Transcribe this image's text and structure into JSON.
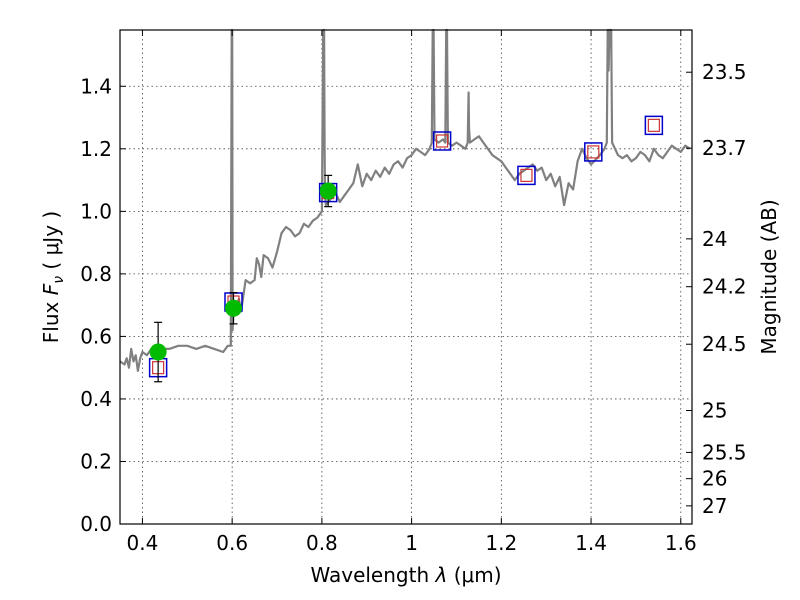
{
  "chart_data": {
    "type": "line",
    "xlabel": "Wavelength",
    "xlabel_symbol": "λ",
    "xlabel_unit": "(μm)",
    "ylabel": "Flux",
    "ylabel_symbol": "F",
    "ylabel_subscript": "ν",
    "ylabel_unit": "( μJy )",
    "y2label": "Magnitude (AB)",
    "xlim": [
      0.35,
      1.625
    ],
    "ylim": [
      0.0,
      1.58
    ],
    "grid": true,
    "x_ticks": [
      0.4,
      0.6,
      0.8,
      1.0,
      1.2,
      1.4,
      1.6
    ],
    "x_tick_labels": [
      "0.4",
      "0.6",
      "0.8",
      "1",
      "1.2",
      "1.4",
      "1.6"
    ],
    "y_ticks": [
      0.0,
      0.2,
      0.4,
      0.6,
      0.8,
      1.0,
      1.2,
      1.4
    ],
    "y_tick_labels": [
      "0.0",
      "0.2",
      "0.4",
      "0.6",
      "0.8",
      "1.0",
      "1.2",
      "1.4"
    ],
    "mag_ticks": [
      {
        "label": "23.5",
        "flux": 1.445
      },
      {
        "label": "23.7",
        "flux": 1.202
      },
      {
        "label": "24",
        "flux": 0.912
      },
      {
        "label": "24.2",
        "flux": 0.759
      },
      {
        "label": "24.5",
        "flux": 0.575
      },
      {
        "label": "25",
        "flux": 0.363
      },
      {
        "label": "25.5",
        "flux": 0.229
      },
      {
        "label": "26",
        "flux": 0.145
      },
      {
        "label": "27",
        "flux": 0.058
      }
    ],
    "colors": {
      "model": "#808080",
      "observed": "#00bb00",
      "model_box": "#0000cc",
      "model_box_inner": "#cc3333",
      "grid": "#444444"
    },
    "series": [
      {
        "kind": "model_spectrum",
        "x": [
          0.35,
          0.36,
          0.365,
          0.37,
          0.375,
          0.38,
          0.385,
          0.39,
          0.395,
          0.4,
          0.41,
          0.42,
          0.43,
          0.44,
          0.45,
          0.46,
          0.48,
          0.5,
          0.52,
          0.54,
          0.56,
          0.58,
          0.59,
          0.597,
          0.599,
          0.6,
          0.601,
          0.603,
          0.61,
          0.615,
          0.62,
          0.63,
          0.64,
          0.65,
          0.655,
          0.66,
          0.665,
          0.67,
          0.68,
          0.69,
          0.7,
          0.71,
          0.72,
          0.73,
          0.74,
          0.75,
          0.76,
          0.77,
          0.78,
          0.79,
          0.8,
          0.803,
          0.805,
          0.806,
          0.807,
          0.809,
          0.82,
          0.83,
          0.84,
          0.85,
          0.86,
          0.87,
          0.88,
          0.89,
          0.9,
          0.91,
          0.92,
          0.93,
          0.94,
          0.95,
          0.96,
          0.97,
          0.98,
          0.99,
          1.0,
          1.01,
          1.02,
          1.03,
          1.04,
          1.045,
          1.047,
          1.048,
          1.049,
          1.051,
          1.06,
          1.07,
          1.075,
          1.077,
          1.078,
          1.079,
          1.081,
          1.09,
          1.1,
          1.11,
          1.12,
          1.125,
          1.127,
          1.128,
          1.13,
          1.14,
          1.15,
          1.16,
          1.17,
          1.18,
          1.19,
          1.2,
          1.21,
          1.22,
          1.23,
          1.24,
          1.25,
          1.27,
          1.28,
          1.29,
          1.3,
          1.31,
          1.32,
          1.33,
          1.34,
          1.35,
          1.36,
          1.37,
          1.38,
          1.39,
          1.4,
          1.42,
          1.43,
          1.435,
          1.437,
          1.438,
          1.439,
          1.441,
          1.443,
          1.444,
          1.445,
          1.447,
          1.46,
          1.47,
          1.48,
          1.49,
          1.5,
          1.51,
          1.52,
          1.53,
          1.54,
          1.55,
          1.56,
          1.57,
          1.58,
          1.59,
          1.6,
          1.61,
          1.62
        ],
        "y": [
          0.52,
          0.51,
          0.53,
          0.5,
          0.56,
          0.52,
          0.54,
          0.49,
          0.53,
          0.55,
          0.54,
          0.56,
          0.55,
          0.57,
          0.56,
          0.56,
          0.57,
          0.57,
          0.56,
          0.57,
          0.56,
          0.55,
          0.57,
          0.57,
          1.58,
          1.58,
          0.62,
          0.69,
          0.7,
          0.72,
          0.68,
          0.78,
          0.77,
          0.78,
          0.85,
          0.83,
          0.79,
          0.86,
          0.85,
          0.82,
          0.87,
          0.93,
          0.95,
          0.94,
          0.92,
          0.93,
          0.96,
          0.95,
          0.97,
          0.98,
          1.0,
          1.58,
          1.58,
          1.2,
          1.05,
          1.02,
          1.04,
          1.06,
          1.03,
          1.05,
          1.07,
          1.09,
          1.15,
          1.08,
          1.12,
          1.1,
          1.13,
          1.11,
          1.14,
          1.12,
          1.15,
          1.16,
          1.14,
          1.17,
          1.18,
          1.2,
          1.19,
          1.18,
          1.2,
          1.22,
          1.58,
          1.58,
          1.58,
          1.23,
          1.22,
          1.23,
          1.22,
          1.58,
          1.58,
          1.58,
          1.22,
          1.21,
          1.22,
          1.21,
          1.2,
          1.22,
          1.38,
          1.27,
          1.22,
          1.23,
          1.24,
          1.22,
          1.2,
          1.18,
          1.17,
          1.16,
          1.14,
          1.12,
          1.1,
          1.12,
          1.13,
          1.15,
          1.13,
          1.14,
          1.1,
          1.12,
          1.08,
          1.11,
          1.02,
          1.09,
          1.07,
          1.16,
          1.2,
          1.17,
          1.15,
          1.18,
          1.2,
          1.22,
          1.58,
          1.58,
          1.45,
          1.58,
          1.58,
          1.58,
          1.58,
          1.22,
          1.18,
          1.17,
          1.18,
          1.16,
          1.17,
          1.19,
          1.18,
          1.16,
          1.2,
          1.18,
          1.17,
          1.19,
          1.21,
          1.2,
          1.19,
          1.21,
          1.2
        ]
      },
      {
        "kind": "observed_photometry",
        "x": [
          0.435,
          0.603,
          0.814
        ],
        "y": [
          0.55,
          0.69,
          1.065
        ],
        "yerr": [
          0.095,
          0.05,
          0.05
        ]
      },
      {
        "kind": "model_photometry",
        "x": [
          0.435,
          0.603,
          0.814,
          1.068,
          1.256,
          1.405,
          1.54
        ],
        "y": [
          0.5,
          0.71,
          1.06,
          1.225,
          1.115,
          1.19,
          1.275
        ]
      }
    ]
  }
}
